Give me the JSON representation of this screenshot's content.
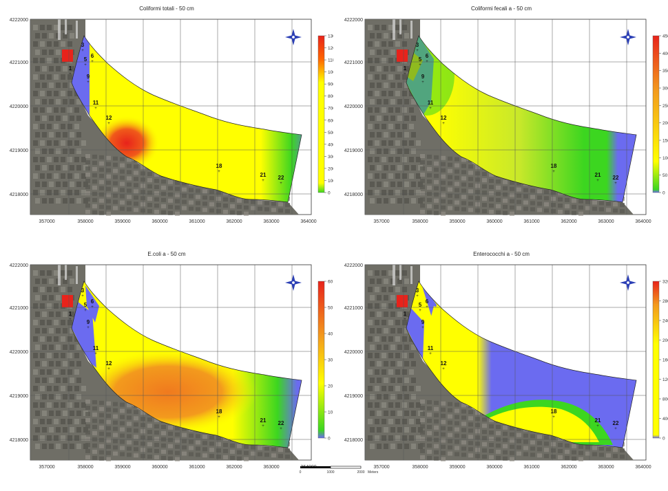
{
  "panels": [
    {
      "title": "Coliformi totali  - 50 cm",
      "scheme": "tot",
      "legend": {
        "ticks": [
          "1300",
          "1200",
          "1100",
          "1000",
          "900",
          "800",
          "700",
          "600",
          "500",
          "400",
          "300",
          "200",
          "100",
          "0"
        ]
      }
    },
    {
      "title": "Coliformi fecali a - 50 cm",
      "scheme": "fec",
      "legend": {
        "ticks": [
          "450",
          "400",
          "350",
          "300",
          "250",
          "200",
          "150",
          "100",
          "50",
          "0"
        ]
      }
    },
    {
      "title": "E.coli a - 50 cm",
      "scheme": "eco",
      "legend": {
        "ticks": [
          "60",
          "50",
          "40",
          "30",
          "20",
          "10",
          "0"
        ]
      }
    },
    {
      "title": "Enterococchi a - 50 cm",
      "scheme": "ent",
      "legend": {
        "ticks": [
          "32000",
          "28000",
          "24000",
          "20000",
          "16000",
          "12000",
          "8000",
          "4000",
          "0"
        ]
      }
    }
  ],
  "axes": {
    "y_ticks": [
      "4222000",
      "4221000",
      "4220000",
      "4219000",
      "4218000"
    ],
    "x_ticks": [
      "357000",
      "358000",
      "359000",
      "360000",
      "361000",
      "362000",
      "363000",
      "364000"
    ]
  },
  "stations": [
    {
      "label": "1"
    },
    {
      "label": "3"
    },
    {
      "label": "5"
    },
    {
      "label": "6"
    },
    {
      "label": "9"
    },
    {
      "label": "11"
    },
    {
      "label": "12"
    },
    {
      "label": "18"
    },
    {
      "label": "21"
    },
    {
      "label": "22"
    }
  ],
  "scale_bar": {
    "ticks": [
      "0",
      "1000",
      "2000"
    ],
    "unit": "Meters"
  },
  "colors": {
    "red": "#e8231b",
    "orange": "#f39a1d",
    "yellow": "#ffff00",
    "green": "#3cd620",
    "blue": "#6b6bf0",
    "land": "#6f6e66"
  }
}
